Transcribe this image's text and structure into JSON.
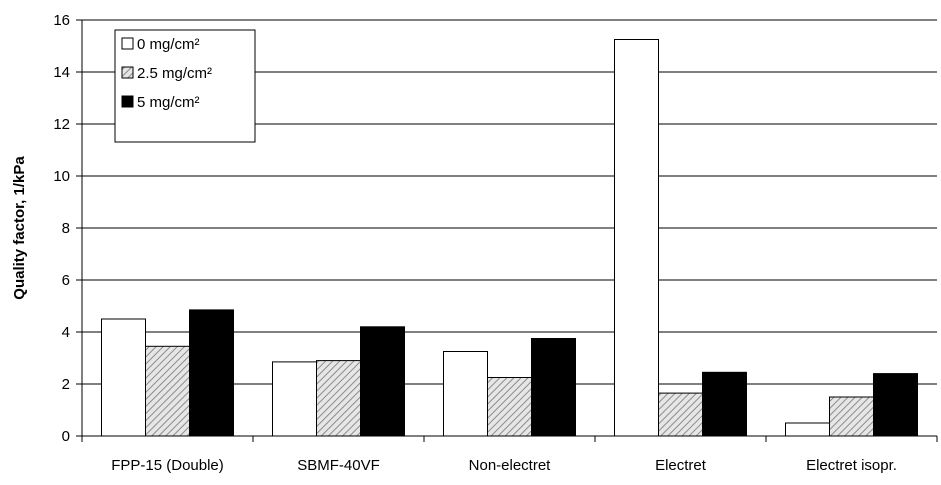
{
  "chart_data": {
    "type": "bar",
    "title": "",
    "xlabel": "",
    "ylabel": "Quality factor, 1/kPa",
    "categories": [
      "FPP-15 (Double)",
      "SBMF-40VF",
      "Non-electret",
      "Electret",
      "Electret isopr."
    ],
    "series": [
      {
        "name": "0 mg/cm²",
        "values": [
          4.5,
          2.85,
          3.25,
          15.25,
          0.5
        ],
        "fill": "#ffffff",
        "pattern": "none"
      },
      {
        "name": "2.5 mg/cm²",
        "values": [
          3.45,
          2.9,
          2.25,
          1.65,
          1.5
        ],
        "fill": "#d9d9d9",
        "pattern": "hatch"
      },
      {
        "name": "5 mg/cm²",
        "values": [
          4.85,
          4.2,
          3.75,
          2.45,
          2.4
        ],
        "fill": "#000000",
        "pattern": "none"
      }
    ],
    "ylim": [
      0,
      16
    ],
    "yticks": [
      0,
      2,
      4,
      6,
      8,
      10,
      12,
      14,
      16
    ],
    "grid": true,
    "legend_position": "top-left",
    "colors": {
      "axis": "#000000",
      "grid": "#000000",
      "hatch": "#8c8c8c"
    }
  }
}
